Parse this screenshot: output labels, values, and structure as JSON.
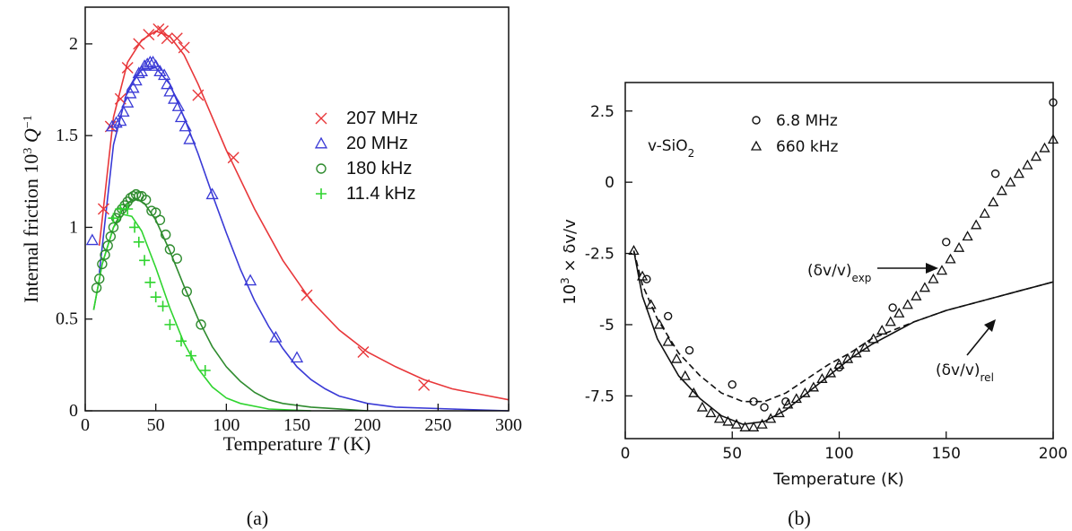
{
  "captions": [
    "(a)",
    "(b)"
  ],
  "chart_data": [
    {
      "type": "line",
      "panel": "(a)",
      "title": "",
      "xlabel": "Temperature T (K)",
      "ylabel": "Internal friction  10^3 Q^-1",
      "xlim": [
        0,
        300
      ],
      "ylim": [
        0,
        2.2
      ],
      "x_ticks": [
        "0",
        "50",
        "100",
        "150",
        "200",
        "250",
        "300"
      ],
      "y_ticks": [
        "0",
        "0.5",
        "1",
        "1.5",
        "2"
      ],
      "legend_position": "right-center",
      "series": [
        {
          "name": "207 MHz",
          "marker": "x",
          "color": "#e8373a",
          "points": [
            [
              13,
              1.1
            ],
            [
              18,
              1.55
            ],
            [
              25,
              1.7
            ],
            [
              30,
              1.87
            ],
            [
              38,
              2.0
            ],
            [
              45,
              2.05
            ],
            [
              52,
              2.08
            ],
            [
              55,
              2.07
            ],
            [
              58,
              2.03
            ],
            [
              65,
              2.03
            ],
            [
              70,
              1.98
            ],
            [
              80,
              1.72
            ],
            [
              105,
              1.38
            ],
            [
              157,
              0.63
            ],
            [
              197,
              0.32
            ],
            [
              240,
              0.14
            ]
          ],
          "curve": [
            [
              10,
              0.9
            ],
            [
              20,
              1.6
            ],
            [
              30,
              1.9
            ],
            [
              40,
              2.02
            ],
            [
              50,
              2.07
            ],
            [
              60,
              2.04
            ],
            [
              70,
              1.94
            ],
            [
              80,
              1.78
            ],
            [
              100,
              1.42
            ],
            [
              120,
              1.1
            ],
            [
              140,
              0.82
            ],
            [
              160,
              0.6
            ],
            [
              180,
              0.44
            ],
            [
              200,
              0.32
            ],
            [
              220,
              0.24
            ],
            [
              240,
              0.17
            ],
            [
              260,
              0.12
            ],
            [
              280,
              0.09
            ],
            [
              300,
              0.06
            ]
          ]
        },
        {
          "name": "20 MHz",
          "marker": "triangle",
          "color": "#3a3ad6",
          "points": [
            [
              5,
              0.93
            ],
            [
              19,
              1.55
            ],
            [
              22,
              1.57
            ],
            [
              25,
              1.58
            ],
            [
              27,
              1.63
            ],
            [
              30,
              1.68
            ],
            [
              32,
              1.73
            ],
            [
              34,
              1.76
            ],
            [
              36,
              1.8
            ],
            [
              38,
              1.84
            ],
            [
              40,
              1.85
            ],
            [
              42,
              1.88
            ],
            [
              44,
              1.89
            ],
            [
              46,
              1.9
            ],
            [
              48,
              1.9
            ],
            [
              50,
              1.88
            ],
            [
              53,
              1.85
            ],
            [
              56,
              1.83
            ],
            [
              58,
              1.78
            ],
            [
              60,
              1.74
            ],
            [
              63,
              1.7
            ],
            [
              66,
              1.66
            ],
            [
              68,
              1.6
            ],
            [
              71,
              1.55
            ],
            [
              74,
              1.48
            ],
            [
              90,
              1.18
            ],
            [
              117,
              0.71
            ],
            [
              135,
              0.4
            ],
            [
              150,
              0.29
            ]
          ],
          "curve": [
            [
              10,
              0.75
            ],
            [
              20,
              1.45
            ],
            [
              30,
              1.75
            ],
            [
              40,
              1.86
            ],
            [
              50,
              1.87
            ],
            [
              60,
              1.78
            ],
            [
              70,
              1.6
            ],
            [
              80,
              1.4
            ],
            [
              90,
              1.18
            ],
            [
              100,
              0.97
            ],
            [
              110,
              0.77
            ],
            [
              120,
              0.6
            ],
            [
              130,
              0.46
            ],
            [
              140,
              0.34
            ],
            [
              150,
              0.24
            ],
            [
              160,
              0.17
            ],
            [
              170,
              0.12
            ],
            [
              180,
              0.08
            ],
            [
              200,
              0.04
            ],
            [
              220,
              0.02
            ],
            [
              260,
              0.01
            ],
            [
              300,
              0.0
            ]
          ]
        },
        {
          "name": "180  kHz",
          "marker": "circle",
          "color": "#2e8b2e",
          "points": [
            [
              8,
              0.67
            ],
            [
              10,
              0.72
            ],
            [
              12,
              0.8
            ],
            [
              14,
              0.85
            ],
            [
              16,
              0.9
            ],
            [
              18,
              0.95
            ],
            [
              20,
              1.0
            ],
            [
              22,
              1.05
            ],
            [
              24,
              1.08
            ],
            [
              26,
              1.1
            ],
            [
              28,
              1.12
            ],
            [
              30,
              1.14
            ],
            [
              32,
              1.16
            ],
            [
              34,
              1.17
            ],
            [
              36,
              1.18
            ],
            [
              38,
              1.17
            ],
            [
              40,
              1.17
            ],
            [
              43,
              1.15
            ],
            [
              47,
              1.09
            ],
            [
              50,
              1.08
            ],
            [
              53,
              1.04
            ],
            [
              57,
              0.96
            ],
            [
              60,
              0.88
            ],
            [
              65,
              0.83
            ],
            [
              72,
              0.65
            ],
            [
              82,
              0.47
            ]
          ],
          "curve": [
            [
              6,
              0.55
            ],
            [
              12,
              0.8
            ],
            [
              20,
              1.0
            ],
            [
              28,
              1.12
            ],
            [
              35,
              1.16
            ],
            [
              42,
              1.13
            ],
            [
              50,
              1.04
            ],
            [
              60,
              0.87
            ],
            [
              70,
              0.68
            ],
            [
              80,
              0.5
            ],
            [
              90,
              0.35
            ],
            [
              100,
              0.24
            ],
            [
              110,
              0.16
            ],
            [
              120,
              0.1
            ],
            [
              130,
              0.06
            ],
            [
              140,
              0.04
            ],
            [
              160,
              0.02
            ],
            [
              200,
              0.0
            ]
          ]
        },
        {
          "name": "11.4 kHz",
          "marker": "plus",
          "color": "#2fd42f",
          "points": [
            [
              20,
              1.05
            ],
            [
              25,
              1.1
            ],
            [
              30,
              1.1
            ],
            [
              35,
              1.0
            ],
            [
              38,
              0.92
            ],
            [
              42,
              0.82
            ],
            [
              46,
              0.7
            ],
            [
              50,
              0.62
            ],
            [
              55,
              0.57
            ],
            [
              60,
              0.47
            ],
            [
              68,
              0.38
            ],
            [
              75,
              0.3
            ],
            [
              85,
              0.22
            ]
          ],
          "curve": [
            [
              6,
              0.55
            ],
            [
              12,
              0.8
            ],
            [
              20,
              1.0
            ],
            [
              27,
              1.07
            ],
            [
              33,
              1.06
            ],
            [
              40,
              0.98
            ],
            [
              50,
              0.78
            ],
            [
              60,
              0.56
            ],
            [
              70,
              0.37
            ],
            [
              80,
              0.23
            ],
            [
              90,
              0.13
            ],
            [
              100,
              0.07
            ],
            [
              110,
              0.04
            ],
            [
              130,
              0.01
            ],
            [
              160,
              0.0
            ]
          ]
        }
      ]
    },
    {
      "type": "line",
      "panel": "(b)",
      "title": "",
      "annotation": "v-SiO2",
      "xlabel": "Temperature  (K)",
      "ylabel": "10^3 × δv/v",
      "xlim": [
        0,
        200
      ],
      "ylim": [
        -9,
        3.5
      ],
      "x_ticks": [
        "0",
        "50",
        "100",
        "150",
        "200"
      ],
      "y_ticks": [
        "2.5",
        "0",
        "-2.5",
        "-5",
        "-7.5"
      ],
      "legend_position": "top-left",
      "curve_labels": [
        "(δv/v)exp",
        "(δv/v)rel"
      ],
      "series": [
        {
          "name": "6.8  MHz",
          "marker": "circle",
          "color": "#111111",
          "points": [
            [
              10,
              -3.4
            ],
            [
              20,
              -4.7
            ],
            [
              30,
              -5.9
            ],
            [
              50,
              -7.1
            ],
            [
              60,
              -7.7
            ],
            [
              65,
              -7.9
            ],
            [
              75,
              -7.7
            ],
            [
              100,
              -6.5
            ],
            [
              125,
              -4.4
            ],
            [
              150,
              -2.1
            ],
            [
              173,
              0.3
            ],
            [
              200,
              2.8
            ]
          ]
        },
        {
          "name": "660 kHz",
          "marker": "triangle",
          "color": "#111111",
          "points": [
            [
              4,
              -2.4
            ],
            [
              8,
              -3.3
            ],
            [
              12,
              -4.3
            ],
            [
              16,
              -5.0
            ],
            [
              20,
              -5.6
            ],
            [
              24,
              -6.2
            ],
            [
              28,
              -6.8
            ],
            [
              32,
              -7.4
            ],
            [
              36,
              -7.9
            ],
            [
              40,
              -8.1
            ],
            [
              44,
              -8.3
            ],
            [
              48,
              -8.4
            ],
            [
              52,
              -8.5
            ],
            [
              56,
              -8.6
            ],
            [
              60,
              -8.6
            ],
            [
              64,
              -8.5
            ],
            [
              68,
              -8.3
            ],
            [
              72,
              -8.1
            ],
            [
              76,
              -7.8
            ],
            [
              80,
              -7.6
            ],
            [
              84,
              -7.4
            ],
            [
              88,
              -7.2
            ],
            [
              92,
              -6.9
            ],
            [
              96,
              -6.7
            ],
            [
              100,
              -6.4
            ],
            [
              104,
              -6.2
            ],
            [
              108,
              -6.0
            ],
            [
              112,
              -5.8
            ],
            [
              116,
              -5.5
            ],
            [
              120,
              -5.2
            ],
            [
              124,
              -4.9
            ],
            [
              128,
              -4.6
            ],
            [
              132,
              -4.3
            ],
            [
              136,
              -4.0
            ],
            [
              140,
              -3.7
            ],
            [
              144,
              -3.4
            ],
            [
              148,
              -3.1
            ],
            [
              152,
              -2.7
            ],
            [
              156,
              -2.3
            ],
            [
              160,
              -1.9
            ],
            [
              164,
              -1.5
            ],
            [
              168,
              -1.1
            ],
            [
              172,
              -0.7
            ],
            [
              176,
              -0.3
            ],
            [
              180,
              0.0
            ],
            [
              184,
              0.3
            ],
            [
              188,
              0.6
            ],
            [
              192,
              0.9
            ],
            [
              196,
              1.2
            ],
            [
              200,
              1.5
            ]
          ]
        },
        {
          "name": "(δv/v)exp",
          "marker": "none",
          "style": "solid",
          "color": "#111111",
          "curve": [
            [
              4,
              -2.4
            ],
            [
              8,
              -4.0
            ],
            [
              15,
              -5.5
            ],
            [
              25,
              -6.8
            ],
            [
              35,
              -7.6
            ],
            [
              45,
              -8.2
            ],
            [
              55,
              -8.5
            ],
            [
              65,
              -8.4
            ],
            [
              75,
              -8.0
            ],
            [
              85,
              -7.4
            ],
            [
              95,
              -6.8
            ],
            [
              105,
              -6.2
            ],
            [
              115,
              -5.7
            ],
            [
              125,
              -5.3
            ],
            [
              135,
              -4.9
            ],
            [
              150,
              -4.5
            ],
            [
              170,
              -4.1
            ],
            [
              185,
              -3.8
            ],
            [
              200,
              -3.5
            ]
          ]
        },
        {
          "name": "(δv/v)rel",
          "marker": "none",
          "style": "dashed",
          "color": "#111111",
          "curve": [
            [
              4,
              -2.4
            ],
            [
              8,
              -3.6
            ],
            [
              15,
              -4.8
            ],
            [
              25,
              -6.0
            ],
            [
              35,
              -6.8
            ],
            [
              45,
              -7.4
            ],
            [
              55,
              -7.7
            ],
            [
              65,
              -7.7
            ],
            [
              75,
              -7.4
            ],
            [
              85,
              -6.9
            ],
            [
              95,
              -6.4
            ],
            [
              105,
              -6.0
            ],
            [
              115,
              -5.5
            ],
            [
              125,
              -5.2
            ],
            [
              135,
              -4.9
            ],
            [
              150,
              -4.5
            ],
            [
              170,
              -4.1
            ],
            [
              185,
              -3.8
            ],
            [
              200,
              -3.5
            ]
          ]
        }
      ]
    }
  ]
}
